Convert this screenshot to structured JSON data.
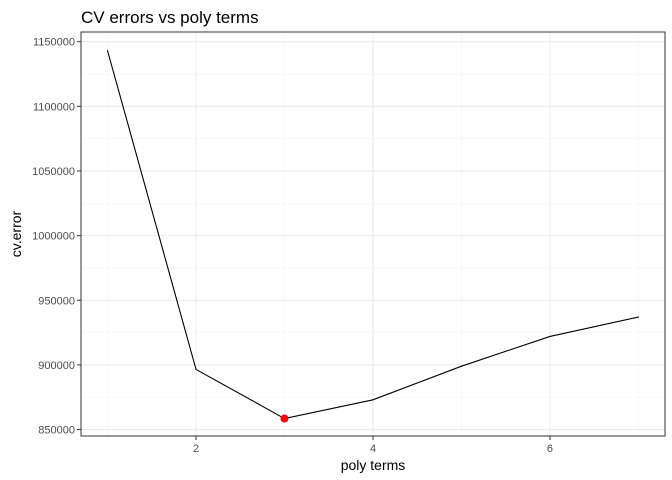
{
  "chart_data": {
    "type": "line",
    "title": "CV errors vs poly terms",
    "xlabel": "poly terms",
    "ylabel": "cv.error",
    "x": [
      1,
      2,
      3,
      4,
      5,
      6,
      7
    ],
    "series": [
      {
        "values": [
          1143000,
          896500,
          858500,
          873000,
          899000,
          922000,
          937000
        ],
        "color": "#000000"
      }
    ],
    "highlight": {
      "x": 3,
      "y": 858500,
      "color": "#ff0000"
    },
    "xlim": [
      0.7,
      7.3
    ],
    "ylim": [
      845000,
      1157500
    ],
    "x_ticks": [
      2,
      4,
      6
    ],
    "x_tick_labels": [
      "2",
      "4",
      "6"
    ],
    "x_minor_ticks": [
      1,
      3,
      5,
      7
    ],
    "y_ticks": [
      850000,
      900000,
      950000,
      1000000,
      1050000,
      1100000,
      1150000
    ],
    "y_tick_labels": [
      "850000",
      "900000",
      "950000",
      "1000000",
      "1050000",
      "1100000",
      "1150000"
    ],
    "y_minor_ticks": [
      875000,
      925000,
      975000,
      1025000,
      1075000,
      1125000
    ],
    "grid": true
  }
}
